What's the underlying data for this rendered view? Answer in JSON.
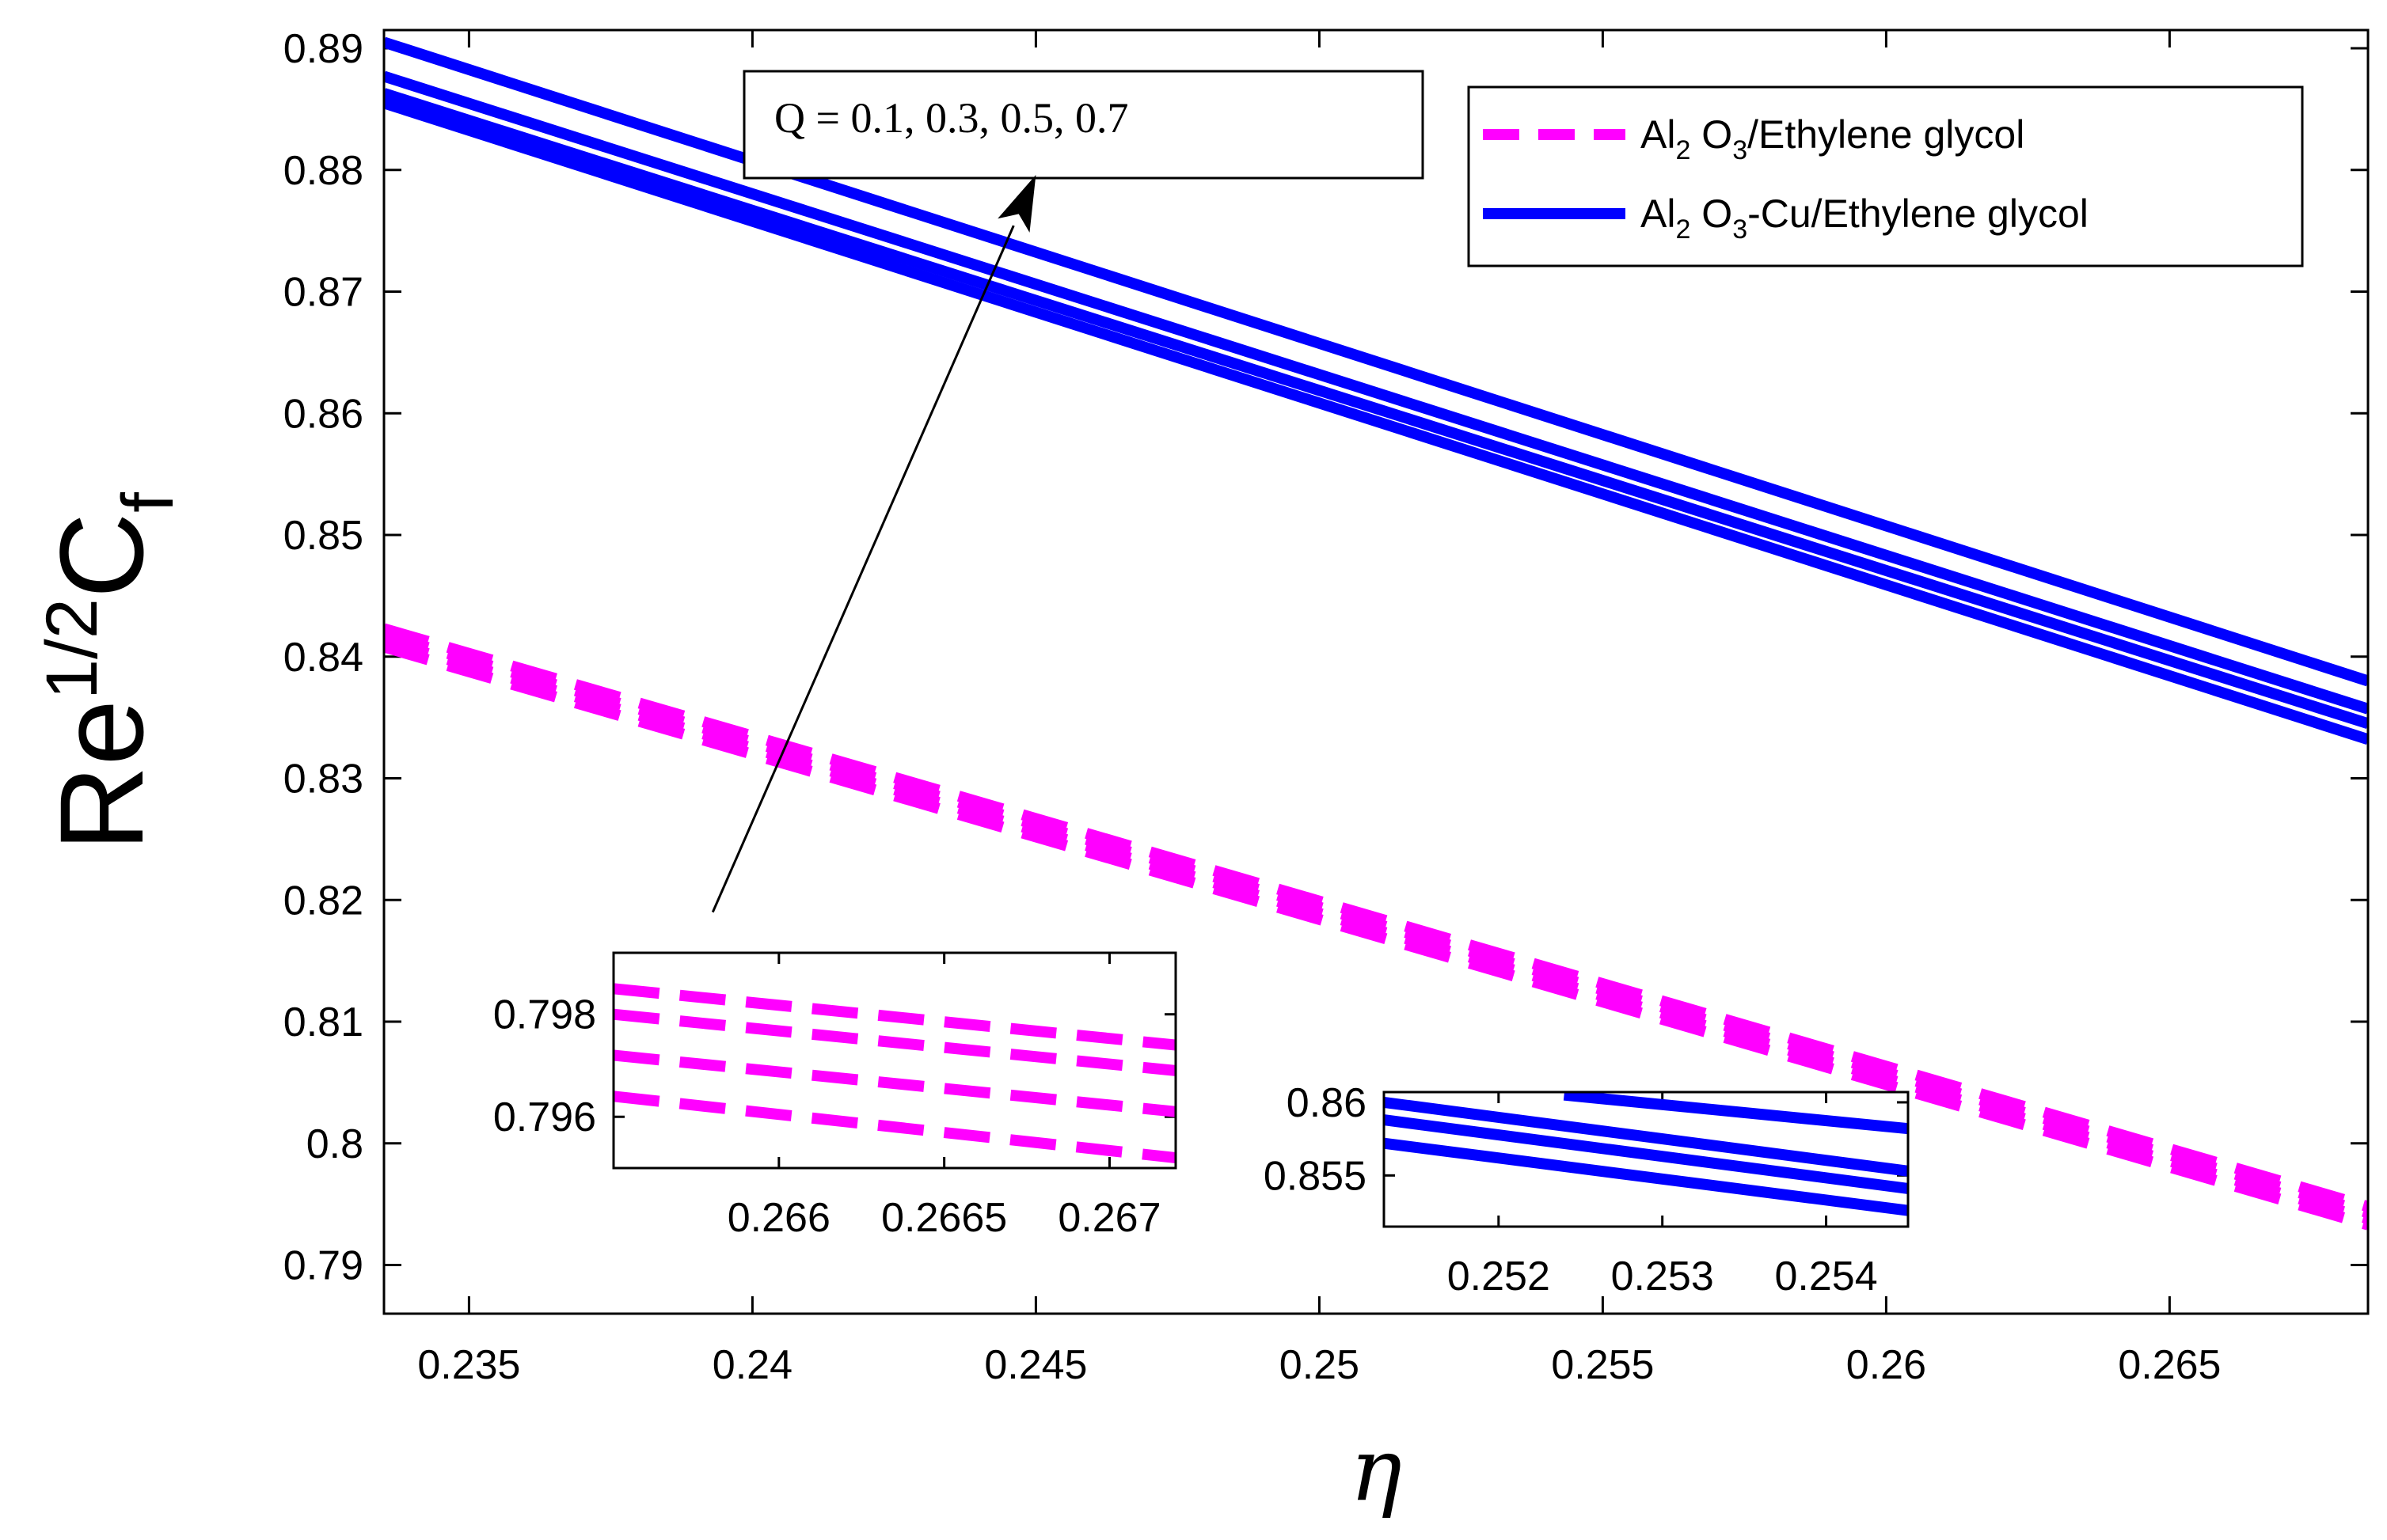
{
  "chart_data": [
    {
      "type": "line",
      "name": "main",
      "xlabel": "η",
      "ylabel": {
        "base": "Re",
        "superscript": "1/2",
        "symbol": "C",
        "subscript": "f"
      },
      "xlim": [
        0.2335,
        0.2685
      ],
      "ylim": [
        0.786,
        0.8915
      ],
      "xticks": [
        0.235,
        0.24,
        0.245,
        0.25,
        0.255,
        0.26,
        0.265
      ],
      "xtick_labels": [
        "0.235",
        "0.24",
        "0.245",
        "0.25",
        "0.255",
        "0.26",
        "0.265"
      ],
      "yticks": [
        0.79,
        0.8,
        0.81,
        0.82,
        0.83,
        0.84,
        0.85,
        0.86,
        0.87,
        0.88,
        0.89
      ],
      "ytick_labels": [
        "0.79",
        "0.8",
        "0.81",
        "0.82",
        "0.83",
        "0.84",
        "0.85",
        "0.86",
        "0.87",
        "0.88",
        "0.89"
      ],
      "grid": false,
      "legend_position": "top-right",
      "legend": [
        {
          "label": {
            "a": "Al",
            "a_sub": "2",
            "b": " O",
            "b_sub": "3",
            "c": "/Ethylene glycol"
          },
          "color": "#ff00ff",
          "style": "dashed"
        },
        {
          "label": {
            "a": "Al",
            "a_sub": "2",
            "b": " O",
            "b_sub": "3",
            "c": "-Cu/Ethylene glycol"
          },
          "color": "#0000ff",
          "style": "solid"
        }
      ],
      "annotation": {
        "text": "Q = 0.1, 0.3, 0.5, 0.7",
        "arrow_from": [
          0.2393,
          0.819
        ],
        "arrow_to": [
          0.245,
          0.8796
        ]
      },
      "series": [
        {
          "name": "Al2O3/Ethylene glycol, Q = 0.1",
          "color": "#ff00ff",
          "style": "dashed",
          "x": [
            0.2335,
            0.2685
          ],
          "y": [
            0.8408,
            0.7933
          ]
        },
        {
          "name": "Al2O3/Ethylene glycol, Q = 0.3",
          "color": "#ff00ff",
          "style": "dashed",
          "x": [
            0.2335,
            0.2685
          ],
          "y": [
            0.8413,
            0.7938
          ]
        },
        {
          "name": "Al2O3/Ethylene glycol, Q = 0.5",
          "color": "#ff00ff",
          "style": "dashed",
          "x": [
            0.2335,
            0.2685
          ],
          "y": [
            0.8418,
            0.7943
          ]
        },
        {
          "name": "Al2O3/Ethylene glycol, Q = 0.7",
          "color": "#ff00ff",
          "style": "dashed",
          "x": [
            0.2335,
            0.2685
          ],
          "y": [
            0.8423,
            0.7948
          ]
        },
        {
          "name": "Al2O3-Cu/Ethylene glycol, Q = 0.1",
          "color": "#0000ff",
          "style": "solid",
          "x": [
            0.2335,
            0.2685
          ],
          "y": [
            0.8855,
            0.8332
          ]
        },
        {
          "name": "Al2O3-Cu/Ethylene glycol, Q = 0.3",
          "color": "#0000ff",
          "style": "solid",
          "x": [
            0.2335,
            0.2685
          ],
          "y": [
            0.8863,
            0.8345
          ]
        },
        {
          "name": "Al2O3-Cu/Ethylene glycol, Q = 0.5",
          "color": "#0000ff",
          "style": "solid",
          "x": [
            0.2335,
            0.2685
          ],
          "y": [
            0.8877,
            0.8357
          ]
        },
        {
          "name": "Al2O3-Cu/Ethylene glycol, Q = 0.7",
          "color": "#0000ff",
          "style": "solid",
          "x": [
            0.2335,
            0.2685
          ],
          "y": [
            0.8905,
            0.838
          ]
        }
      ]
    },
    {
      "type": "line",
      "name": "inset-magenta",
      "xlim": [
        0.2655,
        0.2672
      ],
      "ylim": [
        0.795,
        0.7992
      ],
      "xticks": [
        0.266,
        0.2665,
        0.267
      ],
      "xtick_labels": [
        "0.266",
        "0.2665",
        "0.267"
      ],
      "yticks": [
        0.796,
        0.798
      ],
      "ytick_labels": [
        "0.796",
        "0.798"
      ],
      "grid": false,
      "series": [
        {
          "name": "Q = 0.1",
          "color": "#ff00ff",
          "style": "dashed",
          "x": [
            0.2655,
            0.2672
          ],
          "y": [
            0.7964,
            0.7952
          ]
        },
        {
          "name": "Q = 0.3",
          "color": "#ff00ff",
          "style": "dashed",
          "x": [
            0.2655,
            0.2672
          ],
          "y": [
            0.7972,
            0.7961
          ]
        },
        {
          "name": "Q = 0.5",
          "color": "#ff00ff",
          "style": "dashed",
          "x": [
            0.2655,
            0.2672
          ],
          "y": [
            0.798,
            0.7969
          ]
        },
        {
          "name": "Q = 0.7",
          "color": "#ff00ff",
          "style": "dashed",
          "x": [
            0.2655,
            0.2672
          ],
          "y": [
            0.7985,
            0.7974
          ]
        }
      ]
    },
    {
      "type": "line",
      "name": "inset-blue",
      "xlim": [
        0.2513,
        0.2545
      ],
      "ylim": [
        0.8515,
        0.8607
      ],
      "xticks": [
        0.252,
        0.253,
        0.254
      ],
      "xtick_labels": [
        "0.252",
        "0.253",
        "0.254"
      ],
      "yticks": [
        0.855,
        0.86
      ],
      "ytick_labels": [
        "0.855",
        "0.86"
      ],
      "grid": false,
      "series": [
        {
          "name": "Q = 0.1",
          "color": "#0000ff",
          "style": "solid",
          "x": [
            0.2513,
            0.2545
          ],
          "y": [
            0.8572,
            0.8526
          ]
        },
        {
          "name": "Q = 0.3",
          "color": "#0000ff",
          "style": "solid",
          "x": [
            0.2513,
            0.2545
          ],
          "y": [
            0.8588,
            0.8541
          ]
        },
        {
          "name": "Q = 0.5",
          "color": "#0000ff",
          "style": "solid",
          "x": [
            0.2513,
            0.2545
          ],
          "y": [
            0.86,
            0.8553
          ]
        },
        {
          "name": "Q = 0.7",
          "color": "#0000ff",
          "style": "solid",
          "x": [
            0.2524,
            0.2545
          ],
          "y": [
            0.8605,
            0.8582
          ]
        }
      ]
    }
  ]
}
